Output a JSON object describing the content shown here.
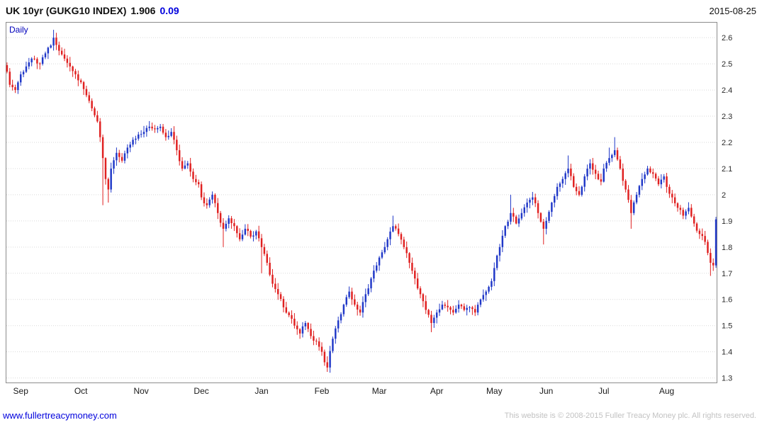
{
  "header": {
    "instrument": "UK 10yr (GUKG10 INDEX)",
    "last": "1.906",
    "change": "0.09",
    "date": "2015-08-25"
  },
  "chart": {
    "frequency_label": "Daily"
  },
  "footer": {
    "link": "www.fullertreacymoney.com",
    "copyright": "This website is © 2008-2015 Fuller Treacy Money plc. All rights reserved."
  },
  "colors": {
    "up": "#2038c8",
    "down": "#e02020",
    "grid": "#d9d9d9",
    "border": "#8c8c8c",
    "axis_text": "#2a2a2a",
    "accent_blue": "#0000bb"
  },
  "chart_data": {
    "type": "candlestick",
    "title": "UK 10yr (GUKG10 INDEX)",
    "frequency": "Daily",
    "last_price": 1.906,
    "change": 0.09,
    "as_of": "2015-08-25",
    "ylim": [
      1.28,
      2.66
    ],
    "yticks": [
      1.3,
      1.4,
      1.5,
      1.6,
      1.7,
      1.8,
      1.9,
      2,
      2.1,
      2.2,
      2.3,
      2.4,
      2.5,
      2.6
    ],
    "ytick_labels": [
      "1.3",
      "1.4",
      "1.5",
      "1.6",
      "1.7",
      "1.8",
      "1.9",
      "2",
      "2.1",
      "2.2",
      "2.3",
      "2.4",
      "2.5",
      "2.6"
    ],
    "grid": "horizontal-dotted",
    "x_months": [
      "Sep",
      "Oct",
      "Nov",
      "Dec",
      "Jan",
      "Feb",
      "Mar",
      "Apr",
      "May",
      "Jun",
      "Jul",
      "Aug"
    ],
    "month_start_days": [
      5,
      27,
      49,
      71,
      93,
      115,
      136,
      157,
      178,
      197,
      218,
      241
    ],
    "total_days": 260,
    "keyframes_format": "[day_index, close, low_or_null, high_or_null]",
    "keyframes": [
      [
        0,
        2.47,
        null,
        null
      ],
      [
        1,
        2.42,
        null,
        null
      ],
      [
        3,
        2.4,
        null,
        null
      ],
      [
        5,
        2.46,
        null,
        null
      ],
      [
        7,
        2.49,
        null,
        null
      ],
      [
        9,
        2.52,
        null,
        null
      ],
      [
        12,
        2.5,
        null,
        null
      ],
      [
        14,
        2.54,
        null,
        null
      ],
      [
        16,
        2.57,
        null,
        null
      ],
      [
        17,
        2.6,
        null,
        2.63
      ],
      [
        19,
        2.55,
        null,
        null
      ],
      [
        21,
        2.52,
        null,
        null
      ],
      [
        23,
        2.49,
        null,
        null
      ],
      [
        25,
        2.46,
        null,
        null
      ],
      [
        27,
        2.43,
        null,
        null
      ],
      [
        29,
        2.38,
        null,
        null
      ],
      [
        31,
        2.33,
        null,
        null
      ],
      [
        33,
        2.28,
        null,
        null
      ],
      [
        34,
        2.22,
        null,
        null
      ],
      [
        35,
        2.14,
        1.96,
        null
      ],
      [
        36,
        2.06,
        null,
        null
      ],
      [
        37,
        2.02,
        1.97,
        null
      ],
      [
        38,
        2.1,
        null,
        null
      ],
      [
        40,
        2.16,
        null,
        null
      ],
      [
        42,
        2.13,
        null,
        null
      ],
      [
        44,
        2.18,
        null,
        null
      ],
      [
        46,
        2.21,
        null,
        null
      ],
      [
        48,
        2.23,
        null,
        null
      ],
      [
        50,
        2.24,
        null,
        null
      ],
      [
        52,
        2.26,
        null,
        2.28
      ],
      [
        54,
        2.25,
        null,
        null
      ],
      [
        56,
        2.26,
        null,
        null
      ],
      [
        58,
        2.22,
        null,
        null
      ],
      [
        60,
        2.24,
        null,
        null
      ],
      [
        62,
        2.17,
        null,
        null
      ],
      [
        64,
        2.1,
        null,
        null
      ],
      [
        66,
        2.12,
        null,
        null
      ],
      [
        68,
        2.06,
        null,
        null
      ],
      [
        70,
        2.04,
        null,
        null
      ],
      [
        71,
        1.99,
        null,
        null
      ],
      [
        73,
        1.96,
        null,
        null
      ],
      [
        75,
        2.0,
        null,
        null
      ],
      [
        77,
        1.93,
        null,
        null
      ],
      [
        79,
        1.87,
        1.8,
        null
      ],
      [
        81,
        1.91,
        null,
        null
      ],
      [
        83,
        1.88,
        null,
        null
      ],
      [
        85,
        1.83,
        null,
        null
      ],
      [
        87,
        1.87,
        null,
        null
      ],
      [
        89,
        1.84,
        null,
        null
      ],
      [
        91,
        1.86,
        null,
        null
      ],
      [
        93,
        1.8,
        1.7,
        null
      ],
      [
        95,
        1.74,
        null,
        null
      ],
      [
        97,
        1.66,
        null,
        null
      ],
      [
        99,
        1.62,
        null,
        null
      ],
      [
        101,
        1.57,
        null,
        null
      ],
      [
        103,
        1.54,
        null,
        null
      ],
      [
        105,
        1.5,
        null,
        null
      ],
      [
        107,
        1.47,
        null,
        null
      ],
      [
        109,
        1.51,
        null,
        null
      ],
      [
        111,
        1.46,
        null,
        null
      ],
      [
        113,
        1.44,
        null,
        null
      ],
      [
        115,
        1.4,
        null,
        null
      ],
      [
        116,
        1.36,
        null,
        null
      ],
      [
        117,
        1.34,
        1.325,
        null
      ],
      [
        119,
        1.45,
        null,
        null
      ],
      [
        121,
        1.52,
        null,
        null
      ],
      [
        123,
        1.58,
        null,
        null
      ],
      [
        125,
        1.63,
        null,
        null
      ],
      [
        127,
        1.58,
        null,
        null
      ],
      [
        129,
        1.55,
        null,
        null
      ],
      [
        131,
        1.62,
        null,
        null
      ],
      [
        133,
        1.68,
        null,
        null
      ],
      [
        135,
        1.73,
        null,
        null
      ],
      [
        137,
        1.78,
        null,
        null
      ],
      [
        139,
        1.83,
        null,
        null
      ],
      [
        141,
        1.88,
        null,
        1.92
      ],
      [
        143,
        1.85,
        null,
        null
      ],
      [
        145,
        1.8,
        null,
        null
      ],
      [
        147,
        1.74,
        null,
        null
      ],
      [
        149,
        1.68,
        null,
        null
      ],
      [
        151,
        1.62,
        null,
        null
      ],
      [
        153,
        1.56,
        null,
        null
      ],
      [
        155,
        1.51,
        1.475,
        null
      ],
      [
        157,
        1.55,
        null,
        null
      ],
      [
        159,
        1.58,
        null,
        null
      ],
      [
        161,
        1.57,
        null,
        null
      ],
      [
        163,
        1.55,
        null,
        null
      ],
      [
        165,
        1.58,
        null,
        null
      ],
      [
        167,
        1.56,
        null,
        null
      ],
      [
        169,
        1.57,
        null,
        null
      ],
      [
        171,
        1.55,
        null,
        null
      ],
      [
        173,
        1.6,
        null,
        null
      ],
      [
        175,
        1.63,
        null,
        null
      ],
      [
        177,
        1.67,
        null,
        null
      ],
      [
        178,
        1.72,
        null,
        null
      ],
      [
        180,
        1.8,
        null,
        null
      ],
      [
        182,
        1.88,
        null,
        null
      ],
      [
        184,
        1.93,
        null,
        2.0
      ],
      [
        186,
        1.89,
        null,
        null
      ],
      [
        188,
        1.93,
        null,
        null
      ],
      [
        190,
        1.97,
        null,
        null
      ],
      [
        192,
        1.99,
        null,
        null
      ],
      [
        194,
        1.93,
        null,
        null
      ],
      [
        196,
        1.87,
        1.81,
        null
      ],
      [
        197,
        1.9,
        null,
        null
      ],
      [
        199,
        1.97,
        null,
        null
      ],
      [
        201,
        2.03,
        null,
        null
      ],
      [
        203,
        2.06,
        null,
        null
      ],
      [
        205,
        2.1,
        null,
        2.15
      ],
      [
        207,
        2.03,
        null,
        null
      ],
      [
        209,
        2.0,
        null,
        null
      ],
      [
        211,
        2.07,
        null,
        null
      ],
      [
        213,
        2.12,
        null,
        null
      ],
      [
        215,
        2.08,
        null,
        null
      ],
      [
        217,
        2.05,
        null,
        null
      ],
      [
        218,
        2.1,
        null,
        null
      ],
      [
        220,
        2.14,
        null,
        2.18
      ],
      [
        222,
        2.17,
        null,
        2.22
      ],
      [
        224,
        2.1,
        null,
        null
      ],
      [
        226,
        2.02,
        null,
        null
      ],
      [
        228,
        1.93,
        1.87,
        null
      ],
      [
        230,
        2.0,
        null,
        null
      ],
      [
        232,
        2.06,
        null,
        null
      ],
      [
        234,
        2.1,
        null,
        null
      ],
      [
        236,
        2.08,
        null,
        null
      ],
      [
        238,
        2.04,
        null,
        null
      ],
      [
        240,
        2.07,
        null,
        null
      ],
      [
        241,
        2.03,
        null,
        null
      ],
      [
        243,
        1.99,
        null,
        null
      ],
      [
        245,
        1.95,
        null,
        null
      ],
      [
        247,
        1.92,
        null,
        null
      ],
      [
        249,
        1.95,
        null,
        null
      ],
      [
        251,
        1.89,
        null,
        null
      ],
      [
        253,
        1.85,
        null,
        null
      ],
      [
        255,
        1.82,
        null,
        null
      ],
      [
        257,
        1.74,
        1.69,
        null
      ],
      [
        258,
        1.73,
        null,
        null
      ],
      [
        259,
        1.906,
        null,
        null
      ]
    ]
  }
}
